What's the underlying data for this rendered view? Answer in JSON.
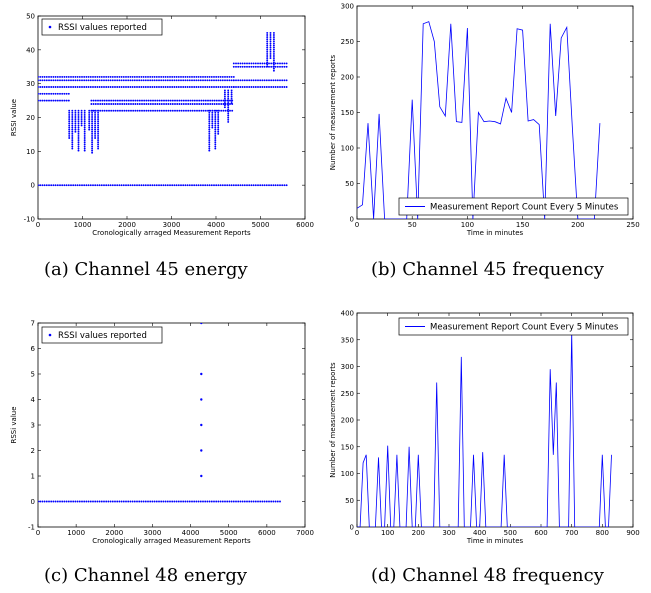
{
  "captions": {
    "a": "(a) Channel 45 energy",
    "b": "(b) Channel 45 frequency",
    "c": "(c) Channel 48 energy",
    "d": "(d) Channel 48 frequency"
  },
  "chart_data": [
    {
      "id": "a",
      "type": "scatter",
      "title": "",
      "xlabel": "Cronologically arraged Measurement Reports",
      "ylabel": "RSSI value",
      "xlim": [
        0,
        6000
      ],
      "ylim": [
        -10,
        50
      ],
      "xticks": [
        0,
        1000,
        2000,
        3000,
        4000,
        5000,
        6000
      ],
      "yticks": [
        -10,
        0,
        10,
        20,
        30,
        40,
        50
      ],
      "grid": false,
      "legend_position": "top-left",
      "color": "#0000ff",
      "series": [
        {
          "name": "RSSI values reported",
          "bands": [
            {
              "x": [
                0,
                5600
              ],
              "y": 0
            },
            {
              "x": [
                0,
                4400
              ],
              "y": 32
            },
            {
              "x": [
                0,
                4400
              ],
              "y": 31
            },
            {
              "x": [
                0,
                4400
              ],
              "y": 29
            },
            {
              "x": [
                0,
                700
              ],
              "y": 27
            },
            {
              "x": [
                0,
                700
              ],
              "y": 25
            },
            {
              "x": [
                1200,
                4400
              ],
              "y": 25
            },
            {
              "x": [
                1200,
                4400
              ],
              "y": 24
            },
            {
              "x": [
                1200,
                4400
              ],
              "y": 22
            },
            {
              "x": [
                4400,
                5600
              ],
              "y": 36
            },
            {
              "x": [
                4400,
                5600
              ],
              "y": 35
            },
            {
              "x": [
                4400,
                5600
              ],
              "y": 31
            },
            {
              "x": [
                4400,
                5600
              ],
              "y": 29
            }
          ],
          "clusters": [
            {
              "x": [
                700,
                1050
              ],
              "y": [
                10,
                22
              ]
            },
            {
              "x": [
                1150,
                1350
              ],
              "y": [
                9,
                22
              ]
            },
            {
              "x": [
                3850,
                4050
              ],
              "y": [
                10,
                22
              ]
            },
            {
              "x": [
                4200,
                4350
              ],
              "y": [
                18,
                28
              ]
            },
            {
              "x": [
                5150,
                5300
              ],
              "y": [
                33,
                45
              ]
            }
          ]
        }
      ]
    },
    {
      "id": "b",
      "type": "line",
      "title": "",
      "xlabel": "Time in minutes",
      "ylabel": "Number of measurement reports",
      "xlim": [
        0,
        250
      ],
      "ylim": [
        0,
        300
      ],
      "xticks": [
        0,
        50,
        100,
        150,
        200,
        250
      ],
      "yticks": [
        0,
        50,
        100,
        150,
        200,
        250,
        300
      ],
      "grid": false,
      "legend_position": "bottom-right",
      "color": "#0000ff",
      "series": [
        {
          "name": "Measurement Report Count Every 5 Minutes",
          "x": [
            0,
            5,
            10,
            15,
            20,
            25,
            30,
            35,
            40,
            45,
            50,
            55,
            60,
            65,
            70,
            75,
            80,
            85,
            90,
            95,
            100,
            105,
            110,
            115,
            120,
            125,
            130,
            135,
            140,
            145,
            150,
            155,
            160,
            165,
            170,
            175,
            180,
            185,
            190,
            195,
            200,
            205,
            210,
            215,
            220
          ],
          "y": [
            15,
            20,
            135,
            0,
            148,
            0,
            0,
            0,
            0,
            0,
            168,
            0,
            275,
            278,
            250,
            158,
            145,
            275,
            137,
            136,
            269,
            0,
            150,
            137,
            138,
            137,
            134,
            170,
            150,
            268,
            266,
            138,
            140,
            133,
            0,
            275,
            145,
            255,
            270,
            130,
            0,
            0,
            0,
            0,
            135
          ]
        }
      ]
    },
    {
      "id": "c",
      "type": "scatter",
      "title": "",
      "xlabel": "Cronologically arraged Measurement Reports",
      "ylabel": "RSSi value",
      "xlim": [
        0,
        7000
      ],
      "ylim": [
        -1,
        7
      ],
      "xticks": [
        0,
        1000,
        2000,
        3000,
        4000,
        5000,
        6000,
        7000
      ],
      "yticks": [
        -1,
        0,
        1,
        2,
        3,
        4,
        5,
        6,
        7
      ],
      "grid": false,
      "legend_position": "top-left",
      "color": "#0000ff",
      "series": [
        {
          "name": "RSSI values reported",
          "bands": [
            {
              "x": [
                0,
                6350
              ],
              "y": 0
            }
          ],
          "points": [
            {
              "x": 4280,
              "y": 1
            },
            {
              "x": 4280,
              "y": 2
            },
            {
              "x": 4280,
              "y": 3
            },
            {
              "x": 4280,
              "y": 4
            },
            {
              "x": 4280,
              "y": 5
            },
            {
              "x": 4280,
              "y": 7
            }
          ]
        }
      ]
    },
    {
      "id": "d",
      "type": "line",
      "title": "",
      "xlabel": "Time in minutes",
      "ylabel": "Number of measurement reports",
      "xlim": [
        0,
        900
      ],
      "ylim": [
        0,
        400
      ],
      "xticks": [
        0,
        100,
        200,
        300,
        400,
        500,
        600,
        700,
        800,
        900
      ],
      "yticks": [
        0,
        50,
        100,
        150,
        200,
        250,
        300,
        350,
        400
      ],
      "grid": false,
      "legend_position": "top-right",
      "color": "#0000ff",
      "series": [
        {
          "name": "Measurement Report Count Every 5 Minutes",
          "x": [
            0,
            10,
            20,
            30,
            40,
            50,
            60,
            70,
            80,
            90,
            100,
            110,
            120,
            130,
            140,
            150,
            160,
            170,
            180,
            190,
            200,
            210,
            220,
            230,
            240,
            250,
            260,
            270,
            280,
            290,
            300,
            310,
            320,
            330,
            340,
            350,
            360,
            370,
            380,
            390,
            400,
            410,
            420,
            430,
            440,
            450,
            460,
            470,
            480,
            490,
            500,
            510,
            520,
            530,
            540,
            550,
            560,
            570,
            580,
            590,
            600,
            610,
            620,
            630,
            640,
            650,
            660,
            670,
            680,
            690,
            700,
            710,
            720,
            730,
            740,
            750,
            760,
            770,
            780,
            790,
            800,
            810,
            820,
            830
          ],
          "y": [
            0,
            0,
            120,
            135,
            0,
            0,
            0,
            130,
            0,
            0,
            152,
            0,
            0,
            135,
            0,
            0,
            0,
            150,
            0,
            0,
            135,
            0,
            0,
            0,
            0,
            0,
            270,
            0,
            0,
            0,
            0,
            0,
            0,
            0,
            318,
            0,
            0,
            0,
            135,
            0,
            0,
            140,
            0,
            0,
            0,
            0,
            0,
            0,
            135,
            0,
            0,
            0,
            0,
            0,
            0,
            0,
            0,
            0,
            0,
            0,
            0,
            0,
            0,
            295,
            135,
            270,
            0,
            0,
            0,
            0,
            365,
            0,
            0,
            0,
            0,
            0,
            0,
            0,
            0,
            0,
            135,
            0,
            0,
            135
          ]
        }
      ]
    }
  ]
}
